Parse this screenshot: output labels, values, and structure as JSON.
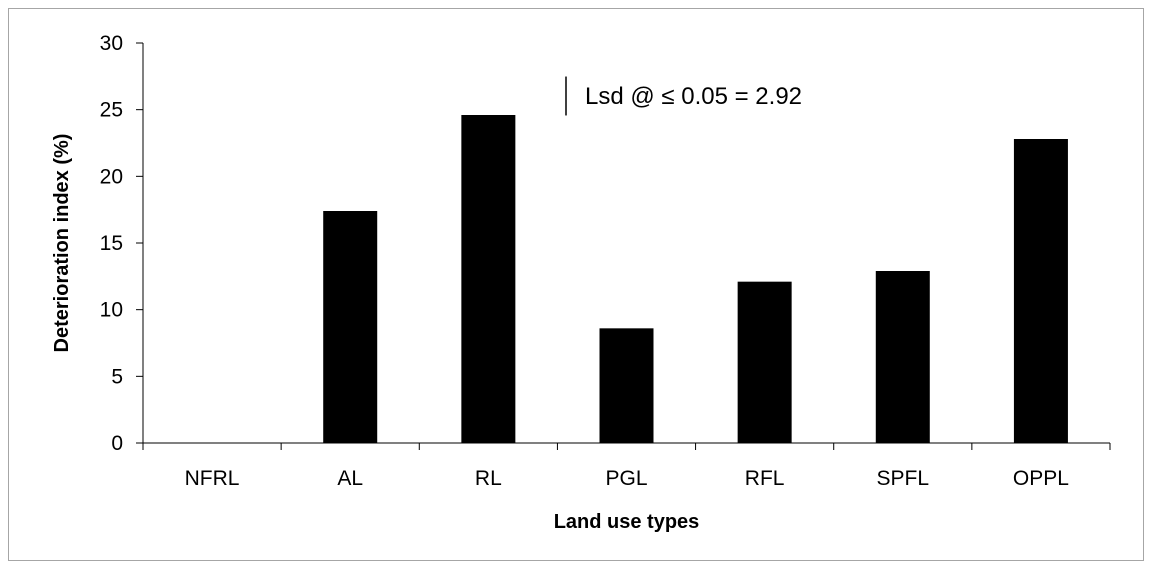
{
  "chart_data": {
    "type": "bar",
    "categories": [
      "NFRL",
      "AL",
      "RL",
      "PGL",
      "RFL",
      "SPFL",
      "OPPL"
    ],
    "values": [
      0,
      17.4,
      24.6,
      8.6,
      12.1,
      12.9,
      22.8
    ],
    "xlabel": "Land use types",
    "ylabel": "Deterioration index (%)",
    "ylim": [
      0,
      30
    ],
    "yticks": [
      0,
      5,
      10,
      15,
      20,
      25,
      30
    ],
    "grid": false,
    "legend": "none",
    "bar_color": "#000000",
    "annotation": "Lsd @ ≤ 0.05 = 2.92",
    "lsd_value": 2.92
  }
}
